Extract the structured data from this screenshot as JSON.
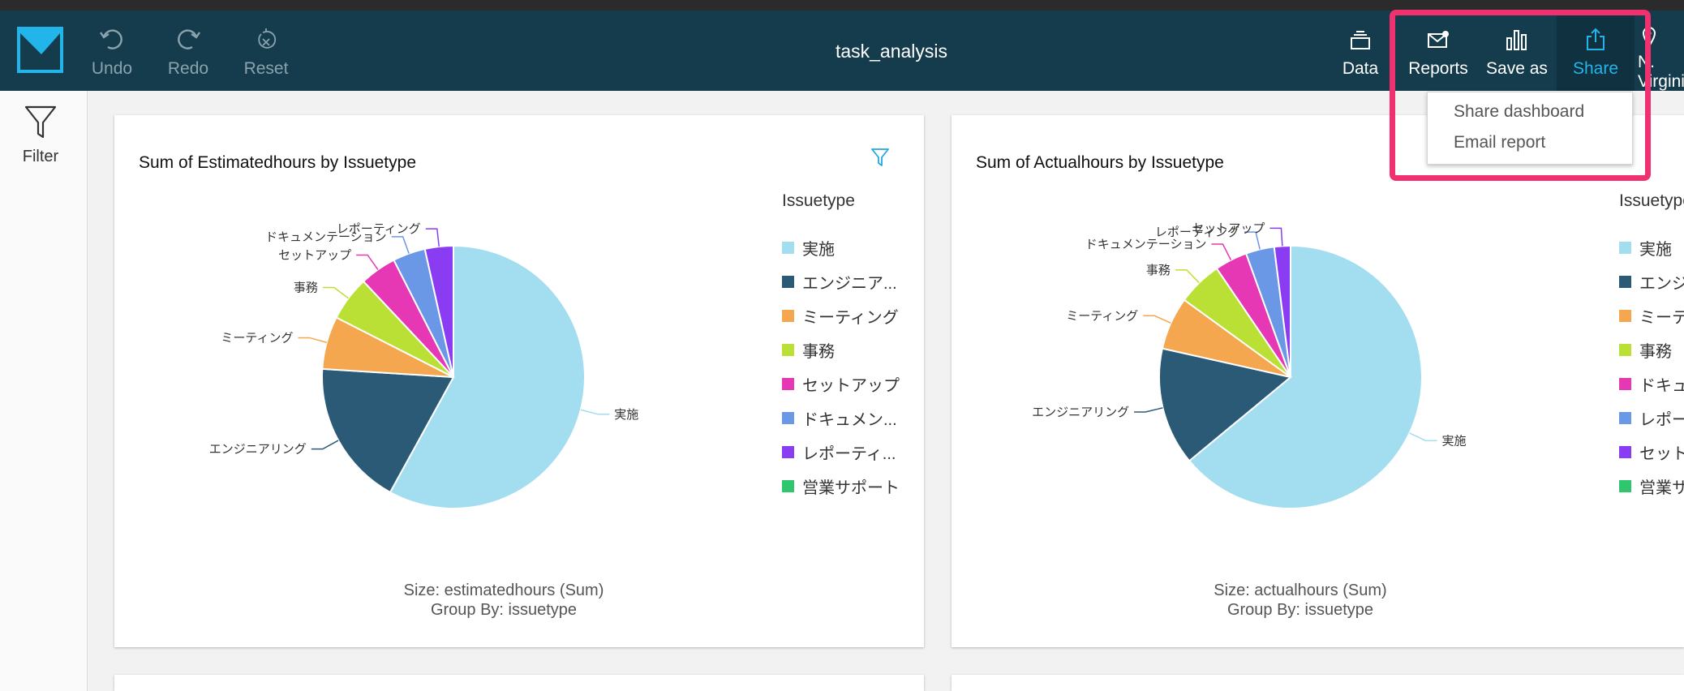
{
  "toolbar": {
    "title": "task_analysis",
    "undo": "Undo",
    "redo": "Redo",
    "reset": "Reset",
    "data": "Data",
    "reports": "Reports",
    "save_as": "Save as",
    "share": "Share",
    "region": "N. Virginia"
  },
  "share_menu": {
    "items": [
      "Share dashboard",
      "Email report"
    ]
  },
  "sidebar": {
    "filter": "Filter"
  },
  "colors": {
    "topbar": "#153c4d",
    "accent": "#22b5ea",
    "highlight": "#f0306f"
  },
  "legend_colors": [
    "#a3def0",
    "#2b5a76",
    "#f5a74f",
    "#bbe035",
    "#e637b4",
    "#6a97e6",
    "#8a3cf2",
    "#2ec770"
  ],
  "visuals": [
    {
      "title": "Sum of Estimatedhours by Issuetype",
      "legend_title": "Issuetype",
      "legend": [
        "実施",
        "エンジニア...",
        "ミーティング",
        "事務",
        "セットアップ",
        "ドキュメン...",
        "レポーティ...",
        "営業サポート"
      ],
      "caption_size": "Size: estimatedhours (Sum)",
      "caption_group": "Group By: issuetype",
      "slice_labels": [
        "実施",
        "エンジニアリング",
        "ミーティング",
        "事務",
        "セットアップ",
        "ドキュメンテーション",
        "レポーティング"
      ]
    },
    {
      "title": "Sum of Actualhours by Issuetype",
      "legend_title": "Issuetype",
      "legend": [
        "実施",
        "エンジ...",
        "ミーテ...",
        "事務",
        "ドキュ...",
        "レポー...",
        "セット...",
        "営業サ..."
      ],
      "caption_size": "Size: actualhours (Sum)",
      "caption_group": "Group By: issuetype",
      "slice_labels": [
        "実施",
        "エンジニアリング",
        "ミーティング",
        "事務",
        "ドキュメンテーション",
        "レポーティング",
        "セットアップ"
      ]
    }
  ],
  "chart_data": [
    {
      "type": "pie",
      "title": "Sum of Estimatedhours by Issuetype",
      "categories": [
        "実施",
        "エンジニアリング",
        "ミーティング",
        "事務",
        "セットアップ",
        "ドキュメンテーション",
        "レポーティング"
      ],
      "values": [
        58.0,
        18.0,
        6.5,
        5.5,
        4.5,
        4.0,
        3.5
      ],
      "colors": [
        "#a3def0",
        "#2b5a76",
        "#f5a74f",
        "#bbe035",
        "#e637b4",
        "#6a97e6",
        "#8a3cf2"
      ]
    },
    {
      "type": "pie",
      "title": "Sum of Actualhours by Issuetype",
      "categories": [
        "実施",
        "エンジニアリング",
        "ミーティング",
        "事務",
        "ドキュメンテーション",
        "レポーティング",
        "セットアップ"
      ],
      "values": [
        64.0,
        14.5,
        6.5,
        5.5,
        4.0,
        3.5,
        2.0
      ],
      "colors": [
        "#a3def0",
        "#2b5a76",
        "#f5a74f",
        "#bbe035",
        "#e637b4",
        "#6a97e6",
        "#8a3cf2"
      ]
    }
  ]
}
